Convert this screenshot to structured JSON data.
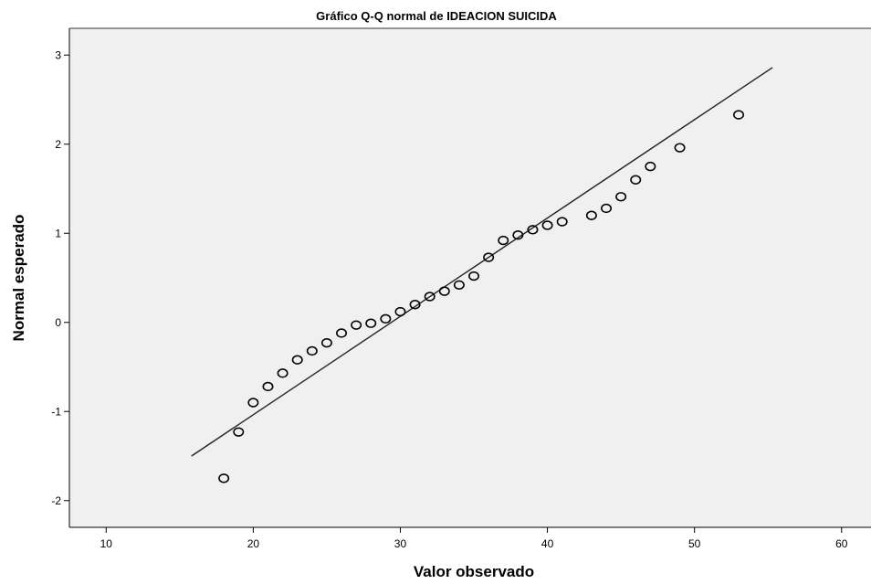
{
  "chart_data": {
    "type": "scatter",
    "title": "Gráfico Q-Q normal de IDEACION SUICIDA",
    "xlabel": "Valor observado",
    "ylabel": "Normal esperado",
    "xlim": [
      7.5,
      62
    ],
    "ylim": [
      -2.3,
      3.3
    ],
    "xticks": [
      10,
      20,
      30,
      40,
      50,
      60
    ],
    "yticks": [
      -2,
      -1,
      0,
      1,
      2,
      3
    ],
    "grid": false,
    "background": "#f0f0f0",
    "point_color": "#000000",
    "line_color": "#222222",
    "reference_line": {
      "x": [
        15.8,
        55.3
      ],
      "y": [
        -1.5,
        2.86
      ]
    },
    "points": [
      {
        "x": 18,
        "y": -1.75
      },
      {
        "x": 19,
        "y": -1.23
      },
      {
        "x": 20,
        "y": -0.9
      },
      {
        "x": 21,
        "y": -0.72
      },
      {
        "x": 22,
        "y": -0.57
      },
      {
        "x": 23,
        "y": -0.42
      },
      {
        "x": 24,
        "y": -0.32
      },
      {
        "x": 25,
        "y": -0.23
      },
      {
        "x": 26,
        "y": -0.12
      },
      {
        "x": 27,
        "y": -0.03
      },
      {
        "x": 28,
        "y": -0.01
      },
      {
        "x": 29,
        "y": 0.04
      },
      {
        "x": 30,
        "y": 0.12
      },
      {
        "x": 31,
        "y": 0.2
      },
      {
        "x": 32,
        "y": 0.29
      },
      {
        "x": 33,
        "y": 0.35
      },
      {
        "x": 34,
        "y": 0.42
      },
      {
        "x": 35,
        "y": 0.52
      },
      {
        "x": 36,
        "y": 0.73
      },
      {
        "x": 37,
        "y": 0.92
      },
      {
        "x": 38,
        "y": 0.98
      },
      {
        "x": 39,
        "y": 1.04
      },
      {
        "x": 40,
        "y": 1.09
      },
      {
        "x": 41,
        "y": 1.13
      },
      {
        "x": 43,
        "y": 1.2
      },
      {
        "x": 44,
        "y": 1.28
      },
      {
        "x": 45,
        "y": 1.41
      },
      {
        "x": 46,
        "y": 1.6
      },
      {
        "x": 47,
        "y": 1.75
      },
      {
        "x": 49,
        "y": 1.96
      },
      {
        "x": 53,
        "y": 2.33
      }
    ]
  }
}
